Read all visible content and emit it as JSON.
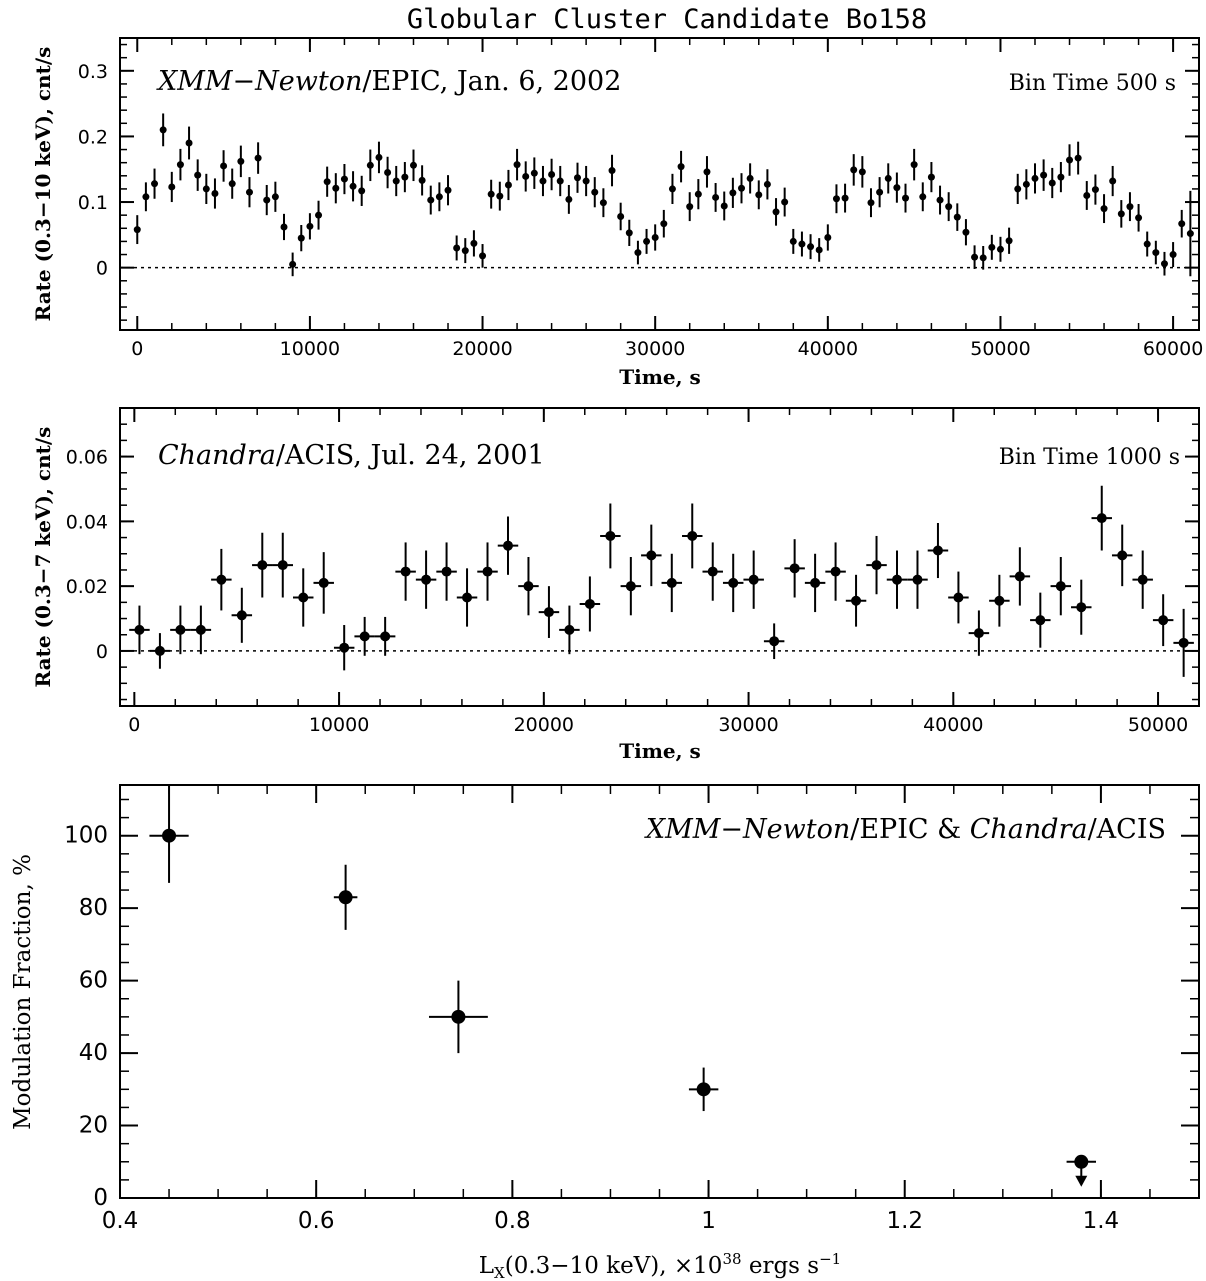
{
  "figure_title": "Globular Cluster Candidate Bo158",
  "chart_data": [
    {
      "type": "scatter",
      "panel": "XMM-Newton light curve",
      "annotation_italic": "XMM−Newton",
      "annotation_plain": "/EPIC, Jan. 6, 2002",
      "bin_label": "Bin Time 500 s",
      "xlabel": "Time, s",
      "ylabel": "Rate (0.3−10 keV), cnt/s",
      "xlim": [
        -1000,
        61500
      ],
      "ylim": [
        -0.095,
        0.35
      ],
      "xticks": [
        0,
        10000,
        20000,
        30000,
        40000,
        50000,
        60000
      ],
      "xtick_labels": [
        "0",
        "10000",
        "20000",
        "30000",
        "40000",
        "50000",
        "60000"
      ],
      "yticks": [
        0,
        0.1,
        0.2,
        0.3
      ],
      "ytick_labels": [
        "0",
        "0.1",
        "0.2",
        "0.3"
      ],
      "zero_line": true,
      "x_error": 0,
      "marker": "small",
      "x": [
        0,
        500,
        1000,
        1500,
        2000,
        2500,
        3000,
        3500,
        4000,
        4500,
        5000,
        5500,
        6000,
        6500,
        7000,
        7500,
        8000,
        8500,
        9000,
        9500,
        10000,
        10500,
        11000,
        11500,
        12000,
        12500,
        13000,
        13500,
        14000,
        14500,
        15000,
        15500,
        16000,
        16500,
        17000,
        17500,
        18000,
        18500,
        19000,
        19500,
        20000,
        20500,
        21000,
        21500,
        22000,
        22500,
        23000,
        23500,
        24000,
        24500,
        25000,
        25500,
        26000,
        26500,
        27000,
        27500,
        28000,
        28500,
        29000,
        29500,
        30000,
        30500,
        31000,
        31500,
        32000,
        32500,
        33000,
        33500,
        34000,
        34500,
        35000,
        35500,
        36000,
        36500,
        37000,
        37500,
        38000,
        38500,
        39000,
        39500,
        40000,
        40500,
        41000,
        41500,
        42000,
        42500,
        43000,
        43500,
        44000,
        44500,
        45000,
        45500,
        46000,
        46500,
        47000,
        47500,
        48000,
        48500,
        49000,
        49500,
        50000,
        50500,
        51000,
        51500,
        52000,
        52500,
        53000,
        53500,
        54000,
        54500,
        55000,
        55500,
        56000,
        56500,
        57000,
        57500,
        58000,
        58500,
        59000,
        59500,
        60000,
        60500,
        61000
      ],
      "y": [
        0.058,
        0.108,
        0.128,
        0.21,
        0.123,
        0.157,
        0.19,
        0.141,
        0.12,
        0.113,
        0.155,
        0.128,
        0.162,
        0.115,
        0.167,
        0.103,
        0.108,
        0.062,
        0.005,
        0.045,
        0.063,
        0.08,
        0.131,
        0.121,
        0.135,
        0.124,
        0.117,
        0.156,
        0.168,
        0.145,
        0.132,
        0.138,
        0.156,
        0.133,
        0.103,
        0.108,
        0.118,
        0.03,
        0.026,
        0.037,
        0.018,
        0.112,
        0.109,
        0.126,
        0.157,
        0.139,
        0.144,
        0.132,
        0.142,
        0.132,
        0.104,
        0.137,
        0.132,
        0.115,
        0.099,
        0.148,
        0.078,
        0.053,
        0.023,
        0.04,
        0.046,
        0.067,
        0.12,
        0.154,
        0.093,
        0.112,
        0.146,
        0.107,
        0.094,
        0.114,
        0.121,
        0.136,
        0.111,
        0.127,
        0.085,
        0.1,
        0.04,
        0.036,
        0.032,
        0.027,
        0.046,
        0.105,
        0.106,
        0.149,
        0.146,
        0.099,
        0.115,
        0.136,
        0.122,
        0.106,
        0.157,
        0.108,
        0.138,
        0.103,
        0.093,
        0.077,
        0.054,
        0.016,
        0.015,
        0.031,
        0.028,
        0.041,
        0.12,
        0.127,
        0.136,
        0.141,
        0.129,
        0.138,
        0.164,
        0.167,
        0.11,
        0.119,
        0.09,
        0.132,
        0.082,
        0.093,
        0.076,
        0.036,
        0.023,
        0.006,
        0.02,
        0.067,
        0.052
      ],
      "yerr": [
        0.022,
        0.022,
        0.023,
        0.025,
        0.023,
        0.024,
        0.025,
        0.024,
        0.023,
        0.023,
        0.024,
        0.023,
        0.024,
        0.023,
        0.024,
        0.023,
        0.023,
        0.02,
        0.018,
        0.02,
        0.02,
        0.022,
        0.023,
        0.023,
        0.023,
        0.023,
        0.023,
        0.024,
        0.024,
        0.024,
        0.023,
        0.023,
        0.024,
        0.023,
        0.022,
        0.022,
        0.023,
        0.019,
        0.019,
        0.02,
        0.018,
        0.022,
        0.022,
        0.023,
        0.024,
        0.023,
        0.024,
        0.023,
        0.024,
        0.023,
        0.022,
        0.023,
        0.023,
        0.023,
        0.022,
        0.024,
        0.021,
        0.02,
        0.018,
        0.019,
        0.02,
        0.021,
        0.023,
        0.024,
        0.022,
        0.023,
        0.024,
        0.022,
        0.022,
        0.023,
        0.023,
        0.023,
        0.022,
        0.023,
        0.021,
        0.022,
        0.019,
        0.019,
        0.019,
        0.018,
        0.02,
        0.022,
        0.022,
        0.024,
        0.024,
        0.022,
        0.023,
        0.023,
        0.023,
        0.022,
        0.024,
        0.022,
        0.023,
        0.022,
        0.022,
        0.021,
        0.02,
        0.018,
        0.018,
        0.019,
        0.019,
        0.02,
        0.023,
        0.023,
        0.023,
        0.024,
        0.023,
        0.023,
        0.024,
        0.025,
        0.022,
        0.023,
        0.022,
        0.023,
        0.021,
        0.022,
        0.021,
        0.019,
        0.018,
        0.018,
        0.019,
        0.021,
        0.065
      ]
    },
    {
      "type": "scatter",
      "panel": "Chandra light curve",
      "annotation_italic": "Chandra",
      "annotation_plain": "/ACIS, Jul. 24, 2001",
      "bin_label": "Bin Time 1000 s",
      "xlabel": "Time, s",
      "ylabel": "Rate (0.3−7 keV), cnt/s",
      "xlim": [
        -700,
        52000
      ],
      "ylim": [
        -0.017,
        0.075
      ],
      "xticks": [
        0,
        10000,
        20000,
        30000,
        40000,
        50000
      ],
      "xtick_labels": [
        "0",
        "10000",
        "20000",
        "30000",
        "40000",
        "50000"
      ],
      "yticks": [
        0,
        0.02,
        0.04,
        0.06
      ],
      "ytick_labels": [
        "0",
        "0.02",
        "0.04",
        "0.06"
      ],
      "zero_line": true,
      "x_error": 500,
      "marker": "medium",
      "x": [
        250,
        1250,
        2250,
        3250,
        4250,
        5250,
        6250,
        7250,
        8250,
        9250,
        10250,
        11250,
        12250,
        13250,
        14250,
        15250,
        16250,
        17250,
        18250,
        19250,
        20250,
        21250,
        22250,
        23250,
        24250,
        25250,
        26250,
        27250,
        28250,
        29250,
        30250,
        31250,
        32250,
        33250,
        34250,
        35250,
        36250,
        37250,
        38250,
        39250,
        40250,
        41250,
        42250,
        43250,
        44250,
        45250,
        46250,
        47250,
        48250,
        49250,
        50250,
        51250
      ],
      "y": [
        0.0065,
        0.0,
        0.0065,
        0.0065,
        0.022,
        0.011,
        0.0265,
        0.0265,
        0.0165,
        0.021,
        0.001,
        0.0045,
        0.0045,
        0.0245,
        0.022,
        0.0245,
        0.0165,
        0.0245,
        0.0325,
        0.02,
        0.012,
        0.0065,
        0.0145,
        0.0355,
        0.02,
        0.0295,
        0.021,
        0.0355,
        0.0245,
        0.021,
        0.022,
        0.003,
        0.0255,
        0.021,
        0.0245,
        0.0155,
        0.0265,
        0.022,
        0.022,
        0.031,
        0.0165,
        0.0055,
        0.0155,
        0.023,
        0.0095,
        0.02,
        0.0135,
        0.041,
        0.0295,
        0.022,
        0.0095,
        0.0025
      ],
      "yerr": [
        0.0075,
        0.0055,
        0.0075,
        0.0075,
        0.0095,
        0.0085,
        0.01,
        0.01,
        0.009,
        0.0095,
        0.007,
        0.006,
        0.006,
        0.009,
        0.009,
        0.009,
        0.009,
        0.009,
        0.009,
        0.009,
        0.008,
        0.0075,
        0.0085,
        0.01,
        0.009,
        0.0095,
        0.009,
        0.01,
        0.009,
        0.009,
        0.009,
        0.0055,
        0.009,
        0.009,
        0.009,
        0.008,
        0.009,
        0.009,
        0.009,
        0.0085,
        0.008,
        0.007,
        0.008,
        0.009,
        0.0085,
        0.009,
        0.0085,
        0.01,
        0.0095,
        0.009,
        0.008,
        0.0105
      ]
    },
    {
      "type": "scatter",
      "panel": "Modulation fraction vs luminosity",
      "annotation_parts": [
        {
          "text": "XMM−Newton",
          "italic": true
        },
        {
          "text": "/EPIC & ",
          "italic": false
        },
        {
          "text": "Chandra",
          "italic": true
        },
        {
          "text": "/ACIS",
          "italic": false
        }
      ],
      "xlabel_main": "L",
      "xlabel_sub": "X",
      "xlabel_mid": "(0.3−10 keV), ×10",
      "xlabel_sup": "38",
      "xlabel_end": " ergs s",
      "xlabel_end_sup": "−1",
      "ylabel": "Modulation Fraction, %",
      "xlim": [
        0.4,
        1.5
      ],
      "ylim": [
        0,
        114
      ],
      "xticks": [
        0.4,
        0.6,
        0.8,
        1.0,
        1.2,
        1.4
      ],
      "xtick_labels": [
        "0.4",
        "0.6",
        "0.8",
        "1",
        "1.2",
        "1.4"
      ],
      "yticks": [
        0,
        20,
        40,
        60,
        80,
        100
      ],
      "ytick_labels": [
        "0",
        "20",
        "40",
        "60",
        "80",
        "100"
      ],
      "marker": "large",
      "x": [
        0.45,
        0.63,
        0.745,
        0.995,
        1.38
      ],
      "y": [
        100,
        83,
        50,
        30,
        10
      ],
      "xerr": [
        0.02,
        0.012,
        0.03,
        0.015,
        0.015
      ],
      "yerr_up": [
        14,
        9,
        10,
        6,
        0
      ],
      "yerr_down": [
        13,
        9,
        10,
        6,
        0
      ],
      "upper_limit": [
        false,
        false,
        false,
        false,
        true
      ]
    }
  ]
}
